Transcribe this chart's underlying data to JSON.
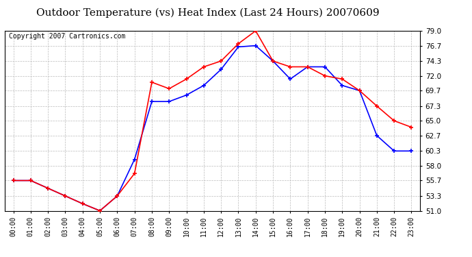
{
  "title": "Outdoor Temperature (vs) Heat Index (Last 24 Hours) 20070609",
  "copyright": "Copyright 2007 Cartronics.com",
  "x_labels": [
    "00:00",
    "01:00",
    "02:00",
    "03:00",
    "04:00",
    "05:00",
    "06:00",
    "07:00",
    "08:00",
    "09:00",
    "10:00",
    "11:00",
    "12:00",
    "13:00",
    "14:00",
    "15:00",
    "16:00",
    "17:00",
    "18:00",
    "19:00",
    "20:00",
    "21:00",
    "22:00",
    "23:00"
  ],
  "temp": [
    55.7,
    55.7,
    54.5,
    53.3,
    52.1,
    51.0,
    53.3,
    56.8,
    71.0,
    70.0,
    71.5,
    73.4,
    74.3,
    77.0,
    79.0,
    74.3,
    73.4,
    73.4,
    72.0,
    71.5,
    69.7,
    67.3,
    65.0,
    64.0
  ],
  "heat_index": [
    55.7,
    55.7,
    54.5,
    53.3,
    52.1,
    51.0,
    53.3,
    59.0,
    68.0,
    68.0,
    69.0,
    70.5,
    73.0,
    76.5,
    76.7,
    74.3,
    71.5,
    73.4,
    73.4,
    70.5,
    69.7,
    62.7,
    60.3,
    60.3
  ],
  "temp_color": "#ff0000",
  "heat_index_color": "#0000ff",
  "ylim": [
    51.0,
    79.0
  ],
  "yticks": [
    51.0,
    53.3,
    55.7,
    58.0,
    60.3,
    62.7,
    65.0,
    67.3,
    69.7,
    72.0,
    74.3,
    76.7,
    79.0
  ],
  "background_color": "#ffffff",
  "grid_color": "#bbbbbb",
  "title_fontsize": 11,
  "copyright_fontsize": 7
}
